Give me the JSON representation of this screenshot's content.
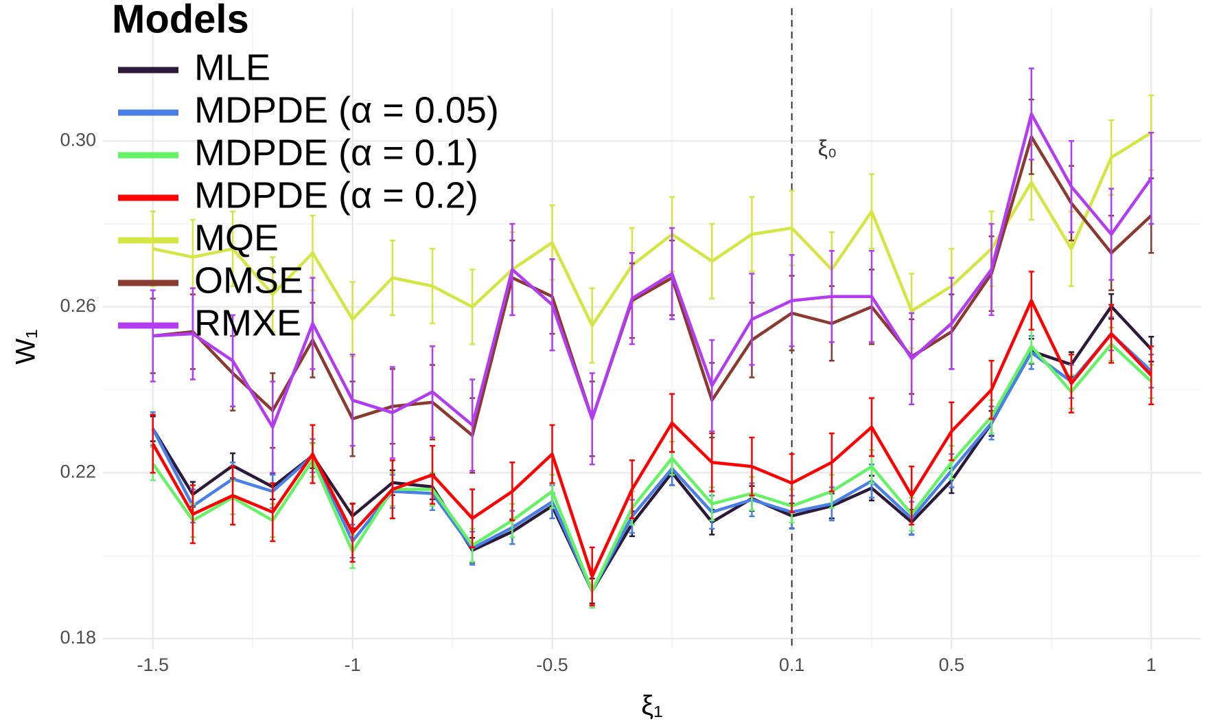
{
  "chart_data": {
    "type": "line",
    "x_label": "ξ₁",
    "y_label": "W₁",
    "legend_title": "Models",
    "legend_position": "top-left",
    "annotation": "ξ₀",
    "vline_x": 0.1,
    "x": [
      -1.5,
      -1.4,
      -1.3,
      -1.2,
      -1.1,
      -1.0,
      -0.9,
      -0.8,
      -0.7,
      -0.6,
      -0.5,
      -0.4,
      -0.3,
      -0.2,
      -0.1,
      0.0,
      0.1,
      0.2,
      0.3,
      0.4,
      0.5,
      0.6,
      0.7,
      0.8,
      0.9,
      1.0
    ],
    "xlim": [
      -1.625,
      1.125
    ],
    "xticks": [
      -1.5,
      -1,
      -0.5,
      0.1,
      0.5,
      1
    ],
    "x_minor_grid": [
      -1.25,
      -0.75,
      -0.2,
      0.3,
      0.75
    ],
    "ylim": [
      0.1775,
      0.332
    ],
    "yticks": [
      0.18,
      0.22,
      0.26,
      {
        "value": 0.3,
        "label": "0.30"
      }
    ],
    "y_minor_grid": [
      0.2,
      0.24,
      0.28
    ],
    "grid": true,
    "series": [
      {
        "name": "MLE",
        "color": "#2d1a3a",
        "error": 0.003,
        "values": [
          0.2306,
          0.2148,
          0.2217,
          0.2166,
          0.2241,
          0.2096,
          0.2176,
          0.2166,
          0.2013,
          0.2058,
          0.212,
          0.1915,
          0.2077,
          0.22,
          0.2081,
          0.2138,
          0.2096,
          0.212,
          0.2163,
          0.2081,
          0.2181,
          0.2319,
          0.2493,
          0.2461,
          0.2601,
          0.2498
        ]
      },
      {
        "name": "MDPDE (α = 0.05)",
        "color": "#4a7fe8",
        "error": 0.004,
        "values": [
          0.2306,
          0.212,
          0.2185,
          0.2155,
          0.2241,
          0.2035,
          0.2155,
          0.215,
          0.2018,
          0.2068,
          0.213,
          0.1915,
          0.2095,
          0.221,
          0.2105,
          0.2135,
          0.2105,
          0.2125,
          0.218,
          0.209,
          0.2205,
          0.232,
          0.249,
          0.242,
          0.2535,
          0.2445
        ]
      },
      {
        "name": "MDPDE (α = 0.1)",
        "color": "#66f266",
        "error": 0.004,
        "values": [
          0.2222,
          0.2085,
          0.214,
          0.2085,
          0.223,
          0.201,
          0.216,
          0.216,
          0.2025,
          0.2085,
          0.2155,
          0.1915,
          0.2115,
          0.2235,
          0.2125,
          0.215,
          0.212,
          0.2155,
          0.2215,
          0.21,
          0.2225,
          0.2335,
          0.2505,
          0.2395,
          0.251,
          0.242
        ]
      },
      {
        "name": "MDPDE (α = 0.2)",
        "color": "#ff0000",
        "error": 0.007,
        "values": [
          0.227,
          0.21,
          0.2145,
          0.2105,
          0.2245,
          0.2055,
          0.216,
          0.2195,
          0.209,
          0.2155,
          0.2245,
          0.195,
          0.216,
          0.232,
          0.2225,
          0.2215,
          0.2175,
          0.2225,
          0.231,
          0.2145,
          0.23,
          0.24,
          0.2615,
          0.2415,
          0.2535,
          0.2435
        ]
      },
      {
        "name": "MQE",
        "color": "#d4e644",
        "error": 0.009,
        "values": [
          0.274,
          0.272,
          0.274,
          0.263,
          0.273,
          0.257,
          0.267,
          0.265,
          0.26,
          0.269,
          0.2755,
          0.2555,
          0.27,
          0.2775,
          0.271,
          0.2775,
          0.279,
          0.269,
          0.283,
          0.259,
          0.265,
          0.274,
          0.29,
          0.274,
          0.296,
          0.302
        ]
      },
      {
        "name": "OMSE",
        "color": "#8b3a2f",
        "error": 0.009,
        "values": [
          0.253,
          0.254,
          0.244,
          0.235,
          0.252,
          0.233,
          0.236,
          0.237,
          0.229,
          0.267,
          0.2625,
          0.233,
          0.2615,
          0.267,
          0.2375,
          0.252,
          0.2585,
          0.256,
          0.26,
          0.248,
          0.254,
          0.268,
          0.301,
          0.285,
          0.273,
          0.282
        ]
      },
      {
        "name": "RMXE",
        "color": "#b23cf2",
        "error": 0.011,
        "values": [
          0.253,
          0.2535,
          0.247,
          0.231,
          0.256,
          0.2375,
          0.2345,
          0.2395,
          0.2315,
          0.269,
          0.2605,
          0.233,
          0.262,
          0.268,
          0.241,
          0.257,
          0.2615,
          0.2625,
          0.2625,
          0.2475,
          0.256,
          0.269,
          0.3065,
          0.289,
          0.2775,
          0.291
        ]
      }
    ]
  }
}
